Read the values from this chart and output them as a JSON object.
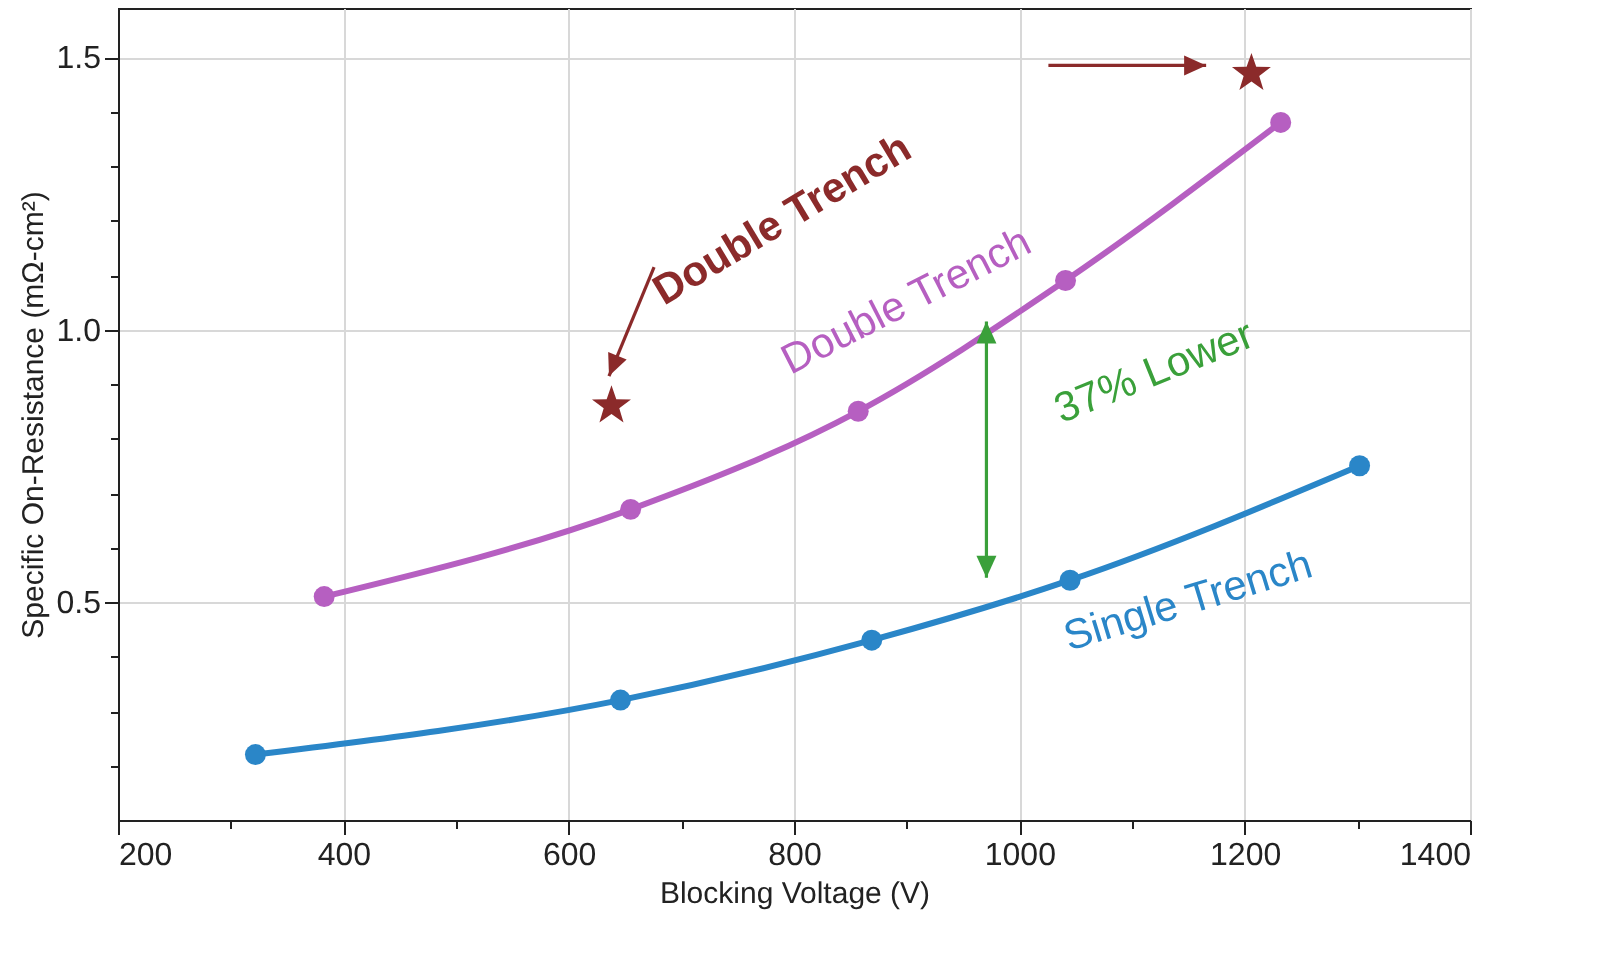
{
  "chart_data": {
    "type": "line",
    "xlabel": "Blocking Voltage (V)",
    "ylabel": "Specific On-Resistance (mΩ-cm²)",
    "xlim": [
      200,
      1400
    ],
    "xticks": [
      200,
      {
        "value": 300,
        "label": null
      },
      400,
      {
        "value": 500,
        "label": null
      },
      600,
      {
        "value": 700,
        "label": null
      },
      800,
      {
        "value": 900,
        "label": null
      },
      1000,
      {
        "value": 1100,
        "label": null
      },
      1200,
      {
        "value": 1300,
        "label": null
      },
      1400
    ],
    "ylim": [
      0.1,
      1.59
    ],
    "yticks": [
      {
        "value": 0.2,
        "label": null
      },
      {
        "value": 0.3,
        "label": null
      },
      {
        "value": 0.4,
        "label": null
      },
      0.5,
      {
        "value": 0.6,
        "label": null
      },
      {
        "value": 0.7,
        "label": null
      },
      {
        "value": 0.8,
        "label": null
      },
      {
        "value": 0.9,
        "label": null
      },
      {
        "value": 1.0,
        "label": "1.0"
      },
      {
        "value": 1.1,
        "label": null
      },
      {
        "value": 1.2,
        "label": null
      },
      {
        "value": 1.3,
        "label": null
      },
      {
        "value": 1.4,
        "label": null
      },
      1.5
    ],
    "grid": true,
    "legend": false,
    "marker": "circle",
    "line_style": "solid",
    "series": [
      {
        "name": "Double Trench",
        "color": "#b65fc1",
        "x": [
          383,
          655,
          857,
          1041,
          1232
        ],
        "values": [
          0.51,
          0.67,
          0.85,
          1.09,
          1.38
        ]
      },
      {
        "name": "Single Trench",
        "color": "#2a86c8",
        "x": [
          322,
          646,
          869,
          1045,
          1302
        ],
        "values": [
          0.22,
          0.32,
          0.43,
          0.54,
          0.75
        ]
      },
      {
        "type": "scatter",
        "marker": "star",
        "color": "#8b2a2a",
        "x": [
          638,
          1206
        ],
        "values": [
          0.86,
          1.47
        ]
      }
    ],
    "annotations": [
      "Double Trench",
      "37% Lower"
    ]
  }
}
